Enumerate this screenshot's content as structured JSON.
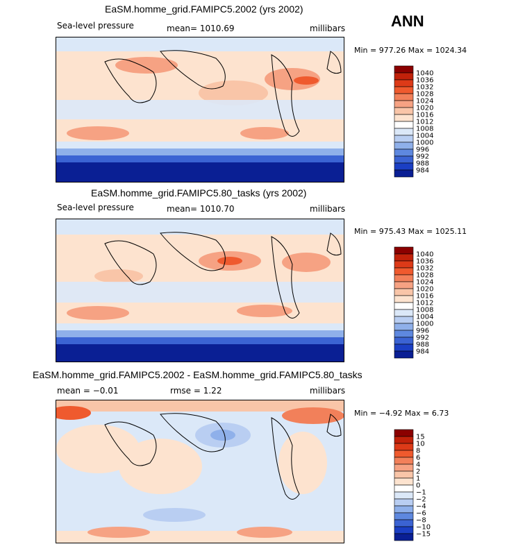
{
  "season": "ANN",
  "panels": [
    {
      "title": "EaSM.homme_grid.FAMIPC5.2002 (yrs 2002)",
      "variable": "Sea-level pressure",
      "stat": "mean= 1010.69",
      "units": "millibars",
      "minmax": "Min = 977.26 Max = 1024.34",
      "levels": [
        "1040",
        "1036",
        "1032",
        "1028",
        "1024",
        "1020",
        "1016",
        "1012",
        "1008",
        "1004",
        "1000",
        "996",
        "992",
        "988",
        "984"
      ],
      "colors": [
        "#8b0000",
        "#c1210a",
        "#dd3a18",
        "#ef5a2e",
        "#f2805a",
        "#f6a283",
        "#f9c5a8",
        "#fde3cf",
        "#ffffff",
        "#dbe8f8",
        "#b9cef2",
        "#8fb0ea",
        "#5e88df",
        "#3b63d3",
        "#1b3fc4",
        "#0a1f94"
      ]
    },
    {
      "title": "EaSM.homme_grid.FAMIPC5.80_tasks (yrs 2002)",
      "variable": "Sea-level pressure",
      "stat": "mean= 1010.70",
      "units": "millibars",
      "minmax": "Min = 975.43 Max = 1025.11",
      "levels": [
        "1040",
        "1036",
        "1032",
        "1028",
        "1024",
        "1020",
        "1016",
        "1012",
        "1008",
        "1004",
        "1000",
        "996",
        "992",
        "988",
        "984"
      ],
      "colors": [
        "#8b0000",
        "#c1210a",
        "#dd3a18",
        "#ef5a2e",
        "#f2805a",
        "#f6a283",
        "#f9c5a8",
        "#fde3cf",
        "#ffffff",
        "#dbe8f8",
        "#b9cef2",
        "#8fb0ea",
        "#5e88df",
        "#3b63d3",
        "#1b3fc4",
        "#0a1f94"
      ]
    },
    {
      "title": "EaSM.homme_grid.FAMIPC5.2002 - EaSM.homme_grid.FAMIPC5.80_tasks",
      "variable": "mean =  −0.01",
      "stat": "rmse =   1.22",
      "units": "millibars",
      "minmax": "Min =  −4.92 Max =   6.73",
      "levels": [
        "15",
        "10",
        "8",
        "6",
        "4",
        "2",
        "1",
        "0",
        "−1",
        "−2",
        "−4",
        "−6",
        "−8",
        "−10",
        "−15"
      ],
      "colors": [
        "#8b0000",
        "#c1210a",
        "#dd3a18",
        "#ef5a2e",
        "#f2805a",
        "#f6a283",
        "#f9c5a8",
        "#fde3cf",
        "#ffffff",
        "#dbe8f8",
        "#b9cef2",
        "#8fb0ea",
        "#5e88df",
        "#3b63d3",
        "#1b3fc4",
        "#0a1f94"
      ]
    }
  ],
  "chart_data": [
    {
      "type": "heatmap",
      "title": "EaSM.homme_grid.FAMIPC5.2002 (yrs 2002)",
      "field": "Sea-level pressure",
      "units": "millibars",
      "mean": 1010.69,
      "min": 977.26,
      "max": 1024.34,
      "contour_levels": [
        984,
        988,
        992,
        996,
        1000,
        1004,
        1008,
        1012,
        1016,
        1020,
        1024,
        1028,
        1032,
        1036,
        1040
      ]
    },
    {
      "type": "heatmap",
      "title": "EaSM.homme_grid.FAMIPC5.80_tasks (yrs 2002)",
      "field": "Sea-level pressure",
      "units": "millibars",
      "mean": 1010.7,
      "min": 975.43,
      "max": 1025.11,
      "contour_levels": [
        984,
        988,
        992,
        996,
        1000,
        1004,
        1008,
        1012,
        1016,
        1020,
        1024,
        1028,
        1032,
        1036,
        1040
      ]
    },
    {
      "type": "heatmap",
      "title": "EaSM.homme_grid.FAMIPC5.2002 - EaSM.homme_grid.FAMIPC5.80_tasks",
      "units": "millibars",
      "mean": -0.01,
      "rmse": 1.22,
      "min": -4.92,
      "max": 6.73,
      "contour_levels": [
        -15,
        -10,
        -8,
        -6,
        -4,
        -2,
        -1,
        0,
        1,
        2,
        4,
        6,
        8,
        10,
        15
      ]
    }
  ]
}
